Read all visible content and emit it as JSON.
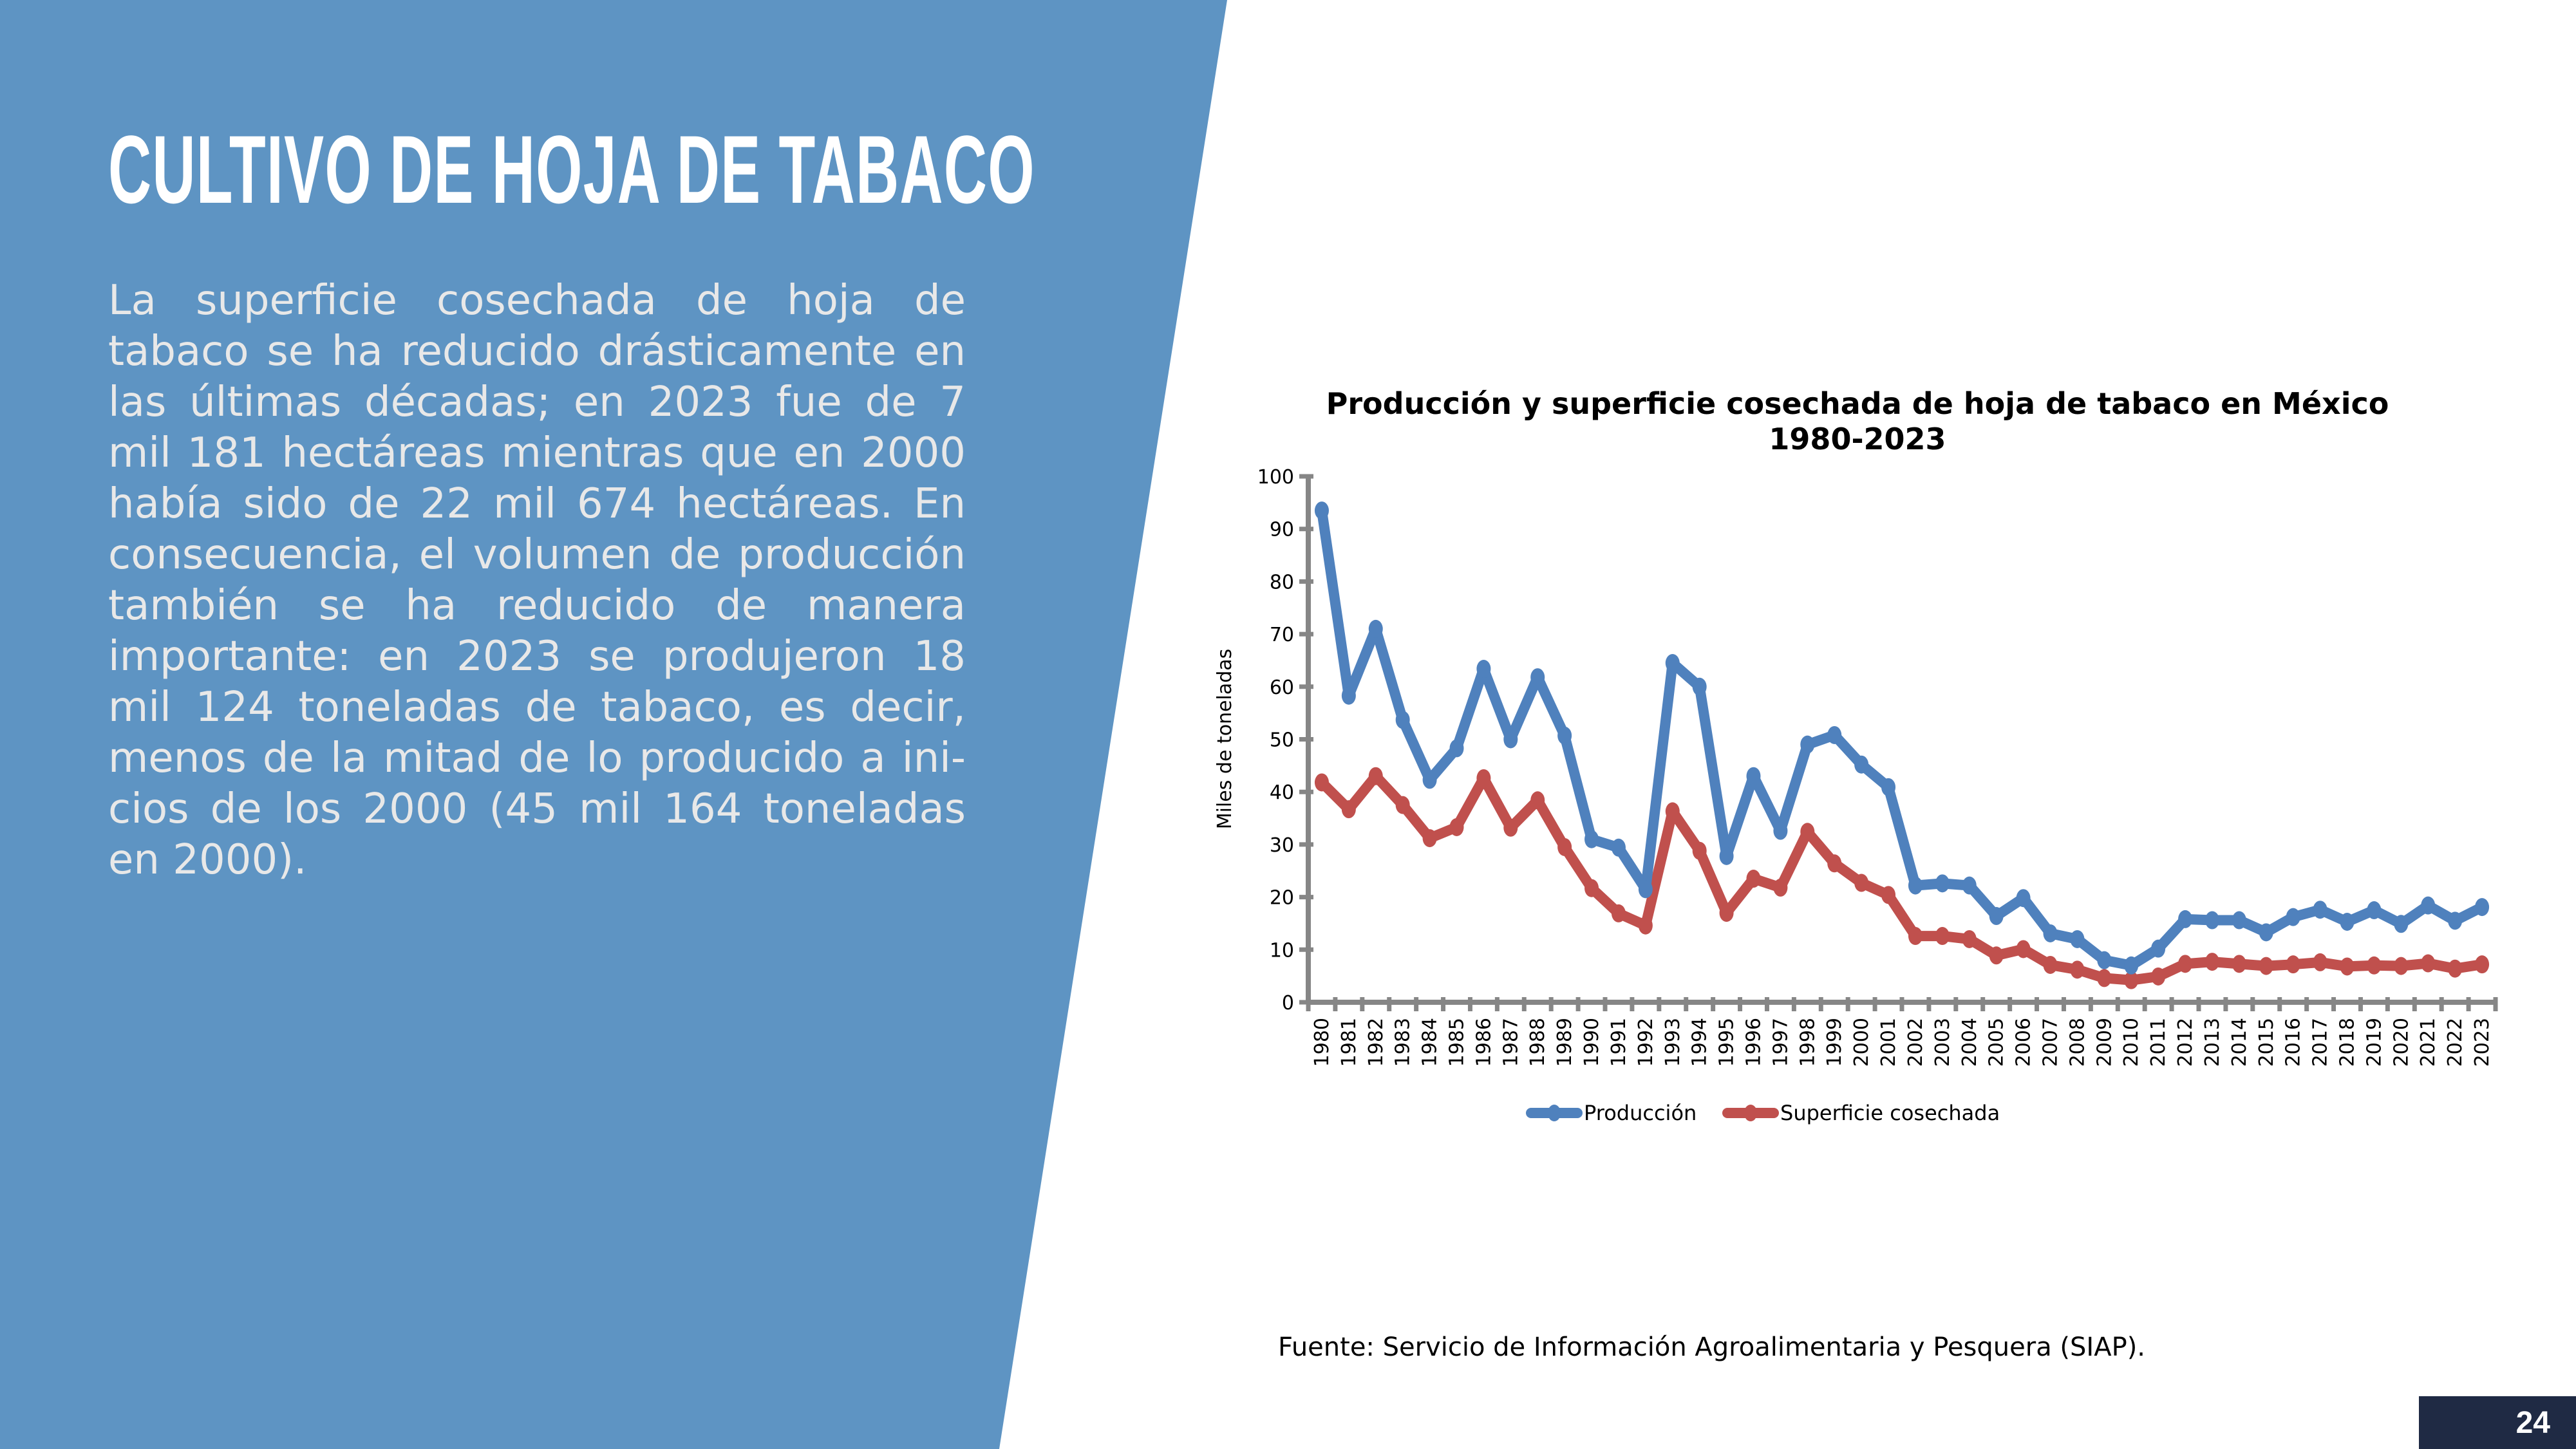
{
  "page": {
    "title": "CULTIVO DE HOJA DE TABACO",
    "body": "La superficie cosechada de hoja de tabaco se ha reducido drásticamente en las últimas décadas; en 2023 fue de 7 mil 181 hectáreas mientras que en 2000 había sido de 22 mil 674 hectáreas. En consecuencia, el volumen de produc­ción también se ha reducido de manera importante: en 2023 se produjeron 18 mil 124 toneladas de tabaco, es decir, menos de la mitad de lo producido a ini­cios de los 2000 (45 mil 164 toneladas en 2000).",
    "footnote": "Fuente: Servicio de Información Agroalimentaria y Pesquera (SIAP).",
    "page_number": "24",
    "colors": {
      "panel": "#5e94c3",
      "page_box": "#1f2a44",
      "body_text": "#e8e8e8"
    }
  },
  "chart_data": {
    "type": "line",
    "title": "Producción y superficie cosechada de hoja de tabaco en México",
    "subtitle": "1980-2023",
    "xlabel": "",
    "ylabel": "Miles de toneladas",
    "ylim": [
      0,
      100
    ],
    "yticks": [
      0,
      10,
      20,
      30,
      40,
      50,
      60,
      70,
      80,
      90,
      100
    ],
    "grid": false,
    "legend_position": "bottom",
    "categories": [
      "1980",
      "1981",
      "1982",
      "1983",
      "1984",
      "1985",
      "1986",
      "1987",
      "1988",
      "1989",
      "1990",
      "1991",
      "1992",
      "1993",
      "1994",
      "1995",
      "1996",
      "1997",
      "1998",
      "1999",
      "2000",
      "2001",
      "2002",
      "2003",
      "2004",
      "2005",
      "2006",
      "2007",
      "2008",
      "2009",
      "2010",
      "2011",
      "2012",
      "2013",
      "2014",
      "2015",
      "2016",
      "2017",
      "2018",
      "2019",
      "2020",
      "2021",
      "2022",
      "2023"
    ],
    "series": [
      {
        "name": "Producción",
        "color": "#4f81bd",
        "values": [
          93.5,
          58.3,
          71.0,
          53.7,
          42.3,
          48.3,
          63.4,
          50.0,
          61.8,
          50.7,
          31.0,
          29.4,
          21.5,
          64.5,
          60.0,
          27.8,
          43.0,
          32.6,
          49.0,
          50.8,
          45.2,
          40.9,
          22.2,
          22.6,
          22.2,
          16.4,
          19.8,
          13.1,
          12.0,
          8.0,
          7.0,
          10.2,
          15.8,
          15.6,
          15.6,
          13.3,
          16.2,
          17.6,
          15.3,
          17.5,
          14.9,
          18.4,
          15.5,
          18.1
        ]
      },
      {
        "name": "Superficie cosechada",
        "color": "#c0504d",
        "values": [
          41.8,
          36.7,
          43.0,
          37.5,
          31.2,
          33.3,
          42.6,
          33.2,
          38.4,
          29.5,
          21.7,
          16.9,
          14.6,
          36.3,
          28.8,
          17.0,
          23.5,
          21.8,
          32.4,
          26.4,
          22.7,
          20.4,
          12.6,
          12.6,
          12.0,
          8.9,
          10.1,
          7.1,
          6.2,
          4.6,
          4.2,
          4.9,
          7.3,
          7.7,
          7.3,
          6.9,
          7.2,
          7.6,
          6.8,
          7.0,
          6.9,
          7.4,
          6.4,
          7.2
        ]
      }
    ]
  }
}
